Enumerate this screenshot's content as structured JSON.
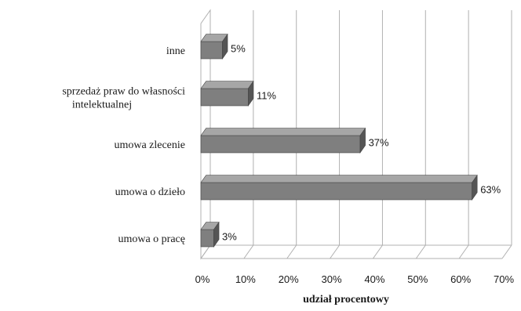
{
  "chart_data": {
    "type": "bar",
    "orientation": "horizontal",
    "style": "3d",
    "categories": [
      [
        "inne"
      ],
      [
        "sprzedaż praw do własności",
        "intelektualnej"
      ],
      [
        "umowa zlecenie"
      ],
      [
        "umowa o dzieło"
      ],
      [
        "umowa o pracę"
      ]
    ],
    "values": [
      5,
      11,
      37,
      63,
      3
    ],
    "data_labels": [
      "5%",
      "11%",
      "37%",
      "63%",
      "3%"
    ],
    "xlabel": "udział procentowy",
    "xlim": [
      0,
      70
    ],
    "x_ticks": [
      "0%",
      "10%",
      "20%",
      "30%",
      "40%",
      "50%",
      "60%",
      "70%"
    ],
    "grid": true,
    "legend": "none",
    "colors": {
      "bar": "#7f7f7f",
      "bar_top": "#a6a6a6",
      "bar_side": "#555555",
      "grid": "#b0b0b0"
    }
  }
}
